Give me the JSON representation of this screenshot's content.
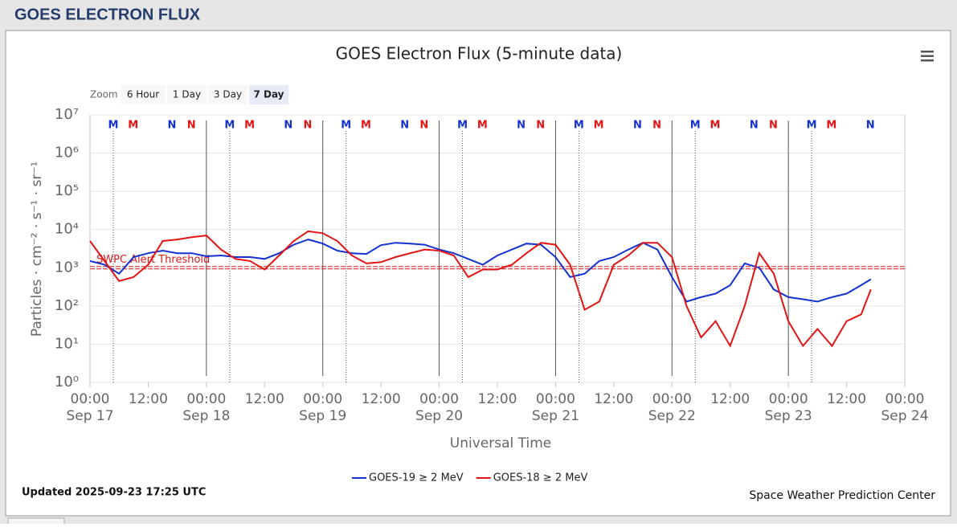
{
  "ui": {
    "header": "GOES ELECTRON FLUX",
    "zoom_label": "Zoom",
    "zoom_buttons": [
      "6 Hour",
      "1 Day",
      "3 Day",
      "7 Day"
    ],
    "active_zoom": "7 Day",
    "updated": "Updated 2025-09-23 17:25 UTC",
    "credit": "Space Weather Prediction Center"
  },
  "chart_data": {
    "type": "line",
    "title": "GOES Electron Flux (5-minute data)",
    "x_label": "Universal Time",
    "y_label": "Particles · cm⁻² · s⁻¹ · sr⁻¹",
    "log_scale": true,
    "grid": true,
    "xlim": [
      "Sep 17 00:00",
      "Sep 24 00:00"
    ],
    "ylim": [
      1,
      10000000
    ],
    "yticks": [
      {
        "value": 1,
        "label": "10⁰"
      },
      {
        "value": 10,
        "label": "10¹"
      },
      {
        "value": 100,
        "label": "10²"
      },
      {
        "value": 1000,
        "label": "10³"
      },
      {
        "value": 10000,
        "label": "10⁴"
      },
      {
        "value": 100000,
        "label": "10⁵"
      },
      {
        "value": 1000000,
        "label": "10⁶"
      },
      {
        "value": 10000000,
        "label": "10⁷"
      }
    ],
    "xticks": [
      {
        "value": "Sep 17 00:00",
        "label": "00:00"
      },
      {
        "value": "Sep 17 12:00",
        "label": "12:00"
      },
      {
        "value": "Sep 18 00:00",
        "label": "00:00"
      },
      {
        "value": "Sep 18 12:00",
        "label": "12:00"
      },
      {
        "value": "Sep 19 00:00",
        "label": "00:00"
      },
      {
        "value": "Sep 19 12:00",
        "label": "12:00"
      },
      {
        "value": "Sep 20 00:00",
        "label": "00:00"
      },
      {
        "value": "Sep 20 12:00",
        "label": "12:00"
      },
      {
        "value": "Sep 21 00:00",
        "label": "00:00"
      },
      {
        "value": "Sep 21 12:00",
        "label": "12:00"
      },
      {
        "value": "Sep 22 00:00",
        "label": "00:00"
      },
      {
        "value": "Sep 22 12:00",
        "label": "12:00"
      },
      {
        "value": "Sep 23 00:00",
        "label": "00:00"
      },
      {
        "value": "Sep 23 12:00",
        "label": "12:00"
      },
      {
        "value": "Sep 24 00:00",
        "label": "00:00"
      }
    ],
    "day_labels": [
      {
        "value": "Sep 17 00:00",
        "label": "Sep 17"
      },
      {
        "value": "Sep 18 00:00",
        "label": "Sep 18"
      },
      {
        "value": "Sep 19 00:00",
        "label": "Sep 19"
      },
      {
        "value": "Sep 20 00:00",
        "label": "Sep 20"
      },
      {
        "value": "Sep 21 00:00",
        "label": "Sep 21"
      },
      {
        "value": "Sep 22 00:00",
        "label": "Sep 22"
      },
      {
        "value": "Sep 23 00:00",
        "label": "Sep 23"
      },
      {
        "value": "Sep 24 00:00",
        "label": "Sep 24"
      }
    ],
    "threshold": {
      "value": 1000,
      "label": "SWPC Alert Threshold",
      "color": "#d62020"
    },
    "x": [
      "Sep 17 00:00",
      "Sep 17 03:00",
      "Sep 17 06:00",
      "Sep 17 09:00",
      "Sep 17 12:00",
      "Sep 17 15:00",
      "Sep 17 18:00",
      "Sep 17 21:00",
      "Sep 18 00:00",
      "Sep 18 03:00",
      "Sep 18 06:00",
      "Sep 18 09:00",
      "Sep 18 12:00",
      "Sep 18 15:00",
      "Sep 18 18:00",
      "Sep 18 21:00",
      "Sep 19 00:00",
      "Sep 19 03:00",
      "Sep 19 06:00",
      "Sep 19 09:00",
      "Sep 19 12:00",
      "Sep 19 15:00",
      "Sep 19 18:00",
      "Sep 19 21:00",
      "Sep 20 00:00",
      "Sep 20 03:00",
      "Sep 20 06:00",
      "Sep 20 09:00",
      "Sep 20 12:00",
      "Sep 20 15:00",
      "Sep 20 18:00",
      "Sep 20 21:00",
      "Sep 21 00:00",
      "Sep 21 03:00",
      "Sep 21 06:00",
      "Sep 21 09:00",
      "Sep 21 12:00",
      "Sep 21 15:00",
      "Sep 21 18:00",
      "Sep 21 21:00",
      "Sep 22 00:00",
      "Sep 22 03:00",
      "Sep 22 06:00",
      "Sep 22 09:00",
      "Sep 22 12:00",
      "Sep 22 15:00",
      "Sep 22 18:00",
      "Sep 22 21:00",
      "Sep 23 00:00",
      "Sep 23 03:00",
      "Sep 23 06:00",
      "Sep 23 09:00",
      "Sep 23 12:00",
      "Sep 23 15:00",
      "Sep 23 17:00"
    ],
    "series": [
      {
        "name": "GOES-19 ≥ 2 MeV",
        "color": "#1432d2",
        "values": [
          1500,
          1200,
          700,
          1900,
          2400,
          2800,
          2400,
          2400,
          2000,
          2100,
          1900,
          1900,
          1700,
          2400,
          4000,
          5500,
          4300,
          2800,
          2400,
          2300,
          3900,
          4500,
          4300,
          4000,
          3000,
          2400,
          1700,
          1200,
          2100,
          3000,
          4300,
          4000,
          1900,
          570,
          700,
          1500,
          1900,
          3000,
          4500,
          3000,
          570,
          130,
          170,
          210,
          350,
          1300,
          1000,
          270,
          170,
          150,
          130,
          170,
          210,
          350,
          500
        ]
      },
      {
        "name": "GOES-18 ≥ 2 MeV",
        "color": "#e41414",
        "values": [
          5000,
          1500,
          450,
          570,
          1200,
          5000,
          5500,
          6300,
          7000,
          3000,
          1700,
          1500,
          900,
          2100,
          5000,
          9000,
          8000,
          5000,
          2100,
          1300,
          1400,
          1900,
          2400,
          3000,
          2800,
          2100,
          570,
          900,
          900,
          1200,
          2400,
          4500,
          4000,
          1200,
          80,
          130,
          1200,
          2100,
          4500,
          4500,
          1900,
          100,
          15,
          40,
          9,
          100,
          2400,
          700,
          40,
          9,
          25,
          9,
          40,
          60,
          270
        ]
      }
    ],
    "markers": [
      {
        "label": "M",
        "color": "#1432d2",
        "x": "Sep 17 04:48"
      },
      {
        "label": "M",
        "color": "#e41414",
        "x": "Sep 17 08:54"
      },
      {
        "label": "N",
        "color": "#1432d2",
        "x": "Sep 17 16:54"
      },
      {
        "label": "N",
        "color": "#e41414",
        "x": "Sep 17 20:54"
      },
      {
        "label": "M",
        "color": "#1432d2",
        "x": "Sep 18 04:48"
      },
      {
        "label": "M",
        "color": "#e41414",
        "x": "Sep 18 08:54"
      },
      {
        "label": "N",
        "color": "#1432d2",
        "x": "Sep 18 16:54"
      },
      {
        "label": "N",
        "color": "#e41414",
        "x": "Sep 18 20:54"
      },
      {
        "label": "M",
        "color": "#1432d2",
        "x": "Sep 19 04:48"
      },
      {
        "label": "M",
        "color": "#e41414",
        "x": "Sep 19 08:54"
      },
      {
        "label": "N",
        "color": "#1432d2",
        "x": "Sep 19 16:54"
      },
      {
        "label": "N",
        "color": "#e41414",
        "x": "Sep 19 20:54"
      },
      {
        "label": "M",
        "color": "#1432d2",
        "x": "Sep 20 04:48"
      },
      {
        "label": "M",
        "color": "#e41414",
        "x": "Sep 20 08:54"
      },
      {
        "label": "N",
        "color": "#1432d2",
        "x": "Sep 20 16:54"
      },
      {
        "label": "N",
        "color": "#e41414",
        "x": "Sep 20 20:54"
      },
      {
        "label": "M",
        "color": "#1432d2",
        "x": "Sep 21 04:48"
      },
      {
        "label": "M",
        "color": "#e41414",
        "x": "Sep 21 08:54"
      },
      {
        "label": "N",
        "color": "#1432d2",
        "x": "Sep 21 16:54"
      },
      {
        "label": "N",
        "color": "#e41414",
        "x": "Sep 21 20:54"
      },
      {
        "label": "M",
        "color": "#1432d2",
        "x": "Sep 22 04:48"
      },
      {
        "label": "M",
        "color": "#e41414",
        "x": "Sep 22 08:54"
      },
      {
        "label": "N",
        "color": "#1432d2",
        "x": "Sep 22 16:54"
      },
      {
        "label": "N",
        "color": "#e41414",
        "x": "Sep 22 20:54"
      },
      {
        "label": "M",
        "color": "#1432d2",
        "x": "Sep 23 04:48"
      },
      {
        "label": "M",
        "color": "#e41414",
        "x": "Sep 23 08:54"
      },
      {
        "label": "N",
        "color": "#1432d2",
        "x": "Sep 23 16:54"
      }
    ]
  }
}
